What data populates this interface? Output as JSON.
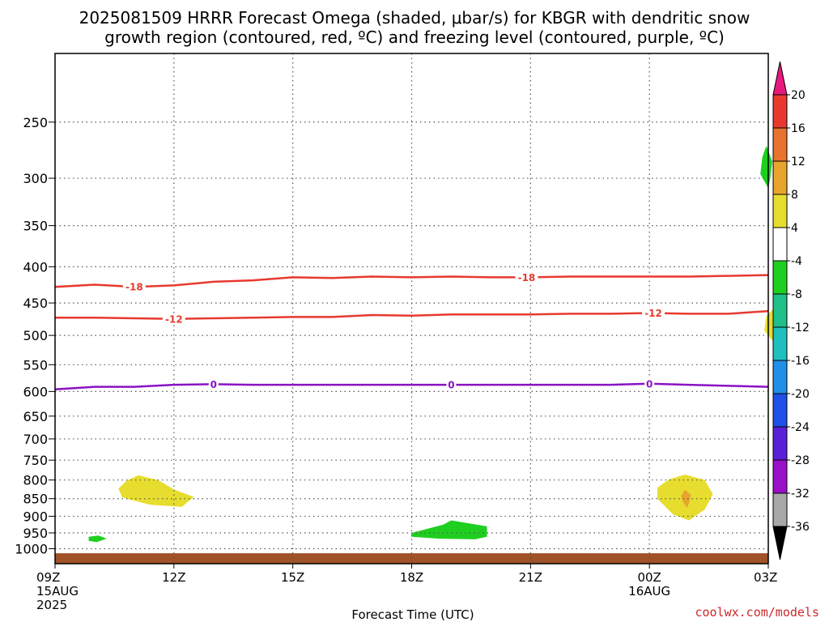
{
  "chart_data": {
    "type": "heatmap",
    "title_line1": "2025081509 HRRR Forecast Omega (shaded, μbar/s) for KBGR with dendritic snow",
    "title_line2": "growth region (contoured, red, ºC) and freezing level (contoured, purple, ºC)",
    "xlabel": "Forecast Time (UTC)",
    "ylabel": "",
    "y_scale": "log-pressure",
    "ylim": [
      1050,
      200
    ],
    "y_ticks": [
      250,
      300,
      350,
      400,
      450,
      500,
      550,
      600,
      650,
      700,
      750,
      800,
      850,
      900,
      950,
      1000
    ],
    "xlim": [
      0,
      18
    ],
    "x_ticks": [
      {
        "hours": 0,
        "line1": "09Z",
        "line2": "15AUG",
        "line3": "2025"
      },
      {
        "hours": 3,
        "line1": "12Z",
        "line2": "",
        "line3": ""
      },
      {
        "hours": 6,
        "line1": "15Z",
        "line2": "",
        "line3": ""
      },
      {
        "hours": 9,
        "line1": "18Z",
        "line2": "",
        "line3": ""
      },
      {
        "hours": 12,
        "line1": "21Z",
        "line2": "",
        "line3": ""
      },
      {
        "hours": 15,
        "line1": "00Z",
        "line2": "16AUG",
        "line3": ""
      },
      {
        "hours": 18,
        "line1": "03Z",
        "line2": "",
        "line3": ""
      }
    ],
    "grid": true,
    "contours": [
      {
        "label": "-18",
        "color": "#e8392f",
        "points": [
          [
            0,
            427
          ],
          [
            1,
            424
          ],
          [
            2,
            427
          ],
          [
            3,
            425
          ],
          [
            4,
            420
          ],
          [
            5,
            418
          ],
          [
            6,
            414
          ],
          [
            7,
            415
          ],
          [
            8,
            413
          ],
          [
            9,
            414
          ],
          [
            10,
            413
          ],
          [
            11,
            414
          ],
          [
            12,
            414
          ],
          [
            13,
            413
          ],
          [
            14,
            413
          ],
          [
            15,
            413
          ],
          [
            16,
            413
          ],
          [
            17,
            412
          ],
          [
            18,
            411
          ]
        ],
        "label_at": [
          2,
          11.9
        ]
      },
      {
        "label": "-12",
        "color": "#e8392f",
        "points": [
          [
            0,
            472
          ],
          [
            1,
            472
          ],
          [
            2,
            473
          ],
          [
            3,
            474
          ],
          [
            4,
            473
          ],
          [
            5,
            472
          ],
          [
            6,
            471
          ],
          [
            7,
            471
          ],
          [
            8,
            468
          ],
          [
            9,
            469
          ],
          [
            10,
            467
          ],
          [
            11,
            467
          ],
          [
            12,
            467
          ],
          [
            13,
            466
          ],
          [
            14,
            466
          ],
          [
            15,
            465
          ],
          [
            16,
            466
          ],
          [
            17,
            466
          ],
          [
            18,
            462
          ]
        ],
        "label_at": [
          3,
          15.1
        ]
      },
      {
        "label": "0",
        "color": "#8a12c4",
        "points": [
          [
            0,
            596
          ],
          [
            1,
            591
          ],
          [
            2,
            591
          ],
          [
            3,
            587
          ],
          [
            4,
            586
          ],
          [
            5,
            587
          ],
          [
            6,
            587
          ],
          [
            7,
            587
          ],
          [
            8,
            587
          ],
          [
            9,
            587
          ],
          [
            10,
            587
          ],
          [
            11,
            587
          ],
          [
            12,
            587
          ],
          [
            13,
            587
          ],
          [
            14,
            587
          ],
          [
            15,
            585
          ],
          [
            16,
            587
          ],
          [
            17,
            589
          ],
          [
            18,
            591
          ]
        ],
        "label_at": [
          4,
          10,
          15
        ]
      }
    ],
    "shaded_regions": [
      {
        "level": "4 to 8",
        "color": "#e6dd2e",
        "points": [
          [
            1.6,
            823
          ],
          [
            1.8,
            802
          ],
          [
            2.1,
            788
          ],
          [
            2.6,
            800
          ],
          [
            3.0,
            825
          ],
          [
            3.5,
            845
          ],
          [
            3.2,
            873
          ],
          [
            2.4,
            867
          ],
          [
            1.7,
            847
          ]
        ]
      },
      {
        "level": "4 to 8",
        "color": "#e6dd2e",
        "points": [
          [
            15.2,
            820
          ],
          [
            15.5,
            798
          ],
          [
            15.9,
            786
          ],
          [
            16.4,
            800
          ],
          [
            16.6,
            838
          ],
          [
            16.4,
            880
          ],
          [
            16.0,
            912
          ],
          [
            15.6,
            895
          ],
          [
            15.2,
            850
          ]
        ]
      },
      {
        "level": "8 to 12",
        "color": "#e8a52e",
        "points": [
          [
            15.9,
            826
          ],
          [
            16.05,
            840
          ],
          [
            16.0,
            862
          ],
          [
            15.95,
            876
          ],
          [
            15.85,
            860
          ],
          [
            15.8,
            842
          ]
        ]
      },
      {
        "level": "4 to 8",
        "color": "#e6dd2e",
        "points": [
          [
            18.1,
            460
          ],
          [
            18.35,
            478
          ],
          [
            18.45,
            490
          ],
          [
            18.15,
            512
          ],
          [
            17.9,
            492
          ],
          [
            17.95,
            470
          ]
        ]
      },
      {
        "level": "-8 to -4",
        "color": "#1fcf1f",
        "points": [
          [
            17.95,
            270
          ],
          [
            18.1,
            284
          ],
          [
            18.05,
            300
          ],
          [
            18.0,
            310
          ],
          [
            17.8,
            296
          ],
          [
            17.85,
            280
          ]
        ]
      },
      {
        "level": "-8 to -4",
        "color": "#1fcf1f",
        "points": [
          [
            0.85,
            962
          ],
          [
            1.1,
            958
          ],
          [
            1.3,
            968
          ],
          [
            1.05,
            979
          ],
          [
            0.85,
            975
          ]
        ]
      },
      {
        "level": "-8 to -4",
        "color": "#1fcf1f",
        "points": [
          [
            9.0,
            950
          ],
          [
            9.8,
            925
          ],
          [
            10.0,
            912
          ],
          [
            10.3,
            918
          ],
          [
            10.9,
            930
          ],
          [
            10.9,
            962
          ],
          [
            10.6,
            970
          ],
          [
            9.7,
            968
          ],
          [
            9.0,
            962
          ]
        ]
      }
    ],
    "ground": {
      "from_pressure": 1015,
      "to_pressure": 1050,
      "color": "#a05228"
    },
    "colorbar": {
      "labels": [
        "20",
        "16",
        "12",
        "8",
        "4",
        "-4",
        "-8",
        "-12",
        "-16",
        "-20",
        "-24",
        "-28",
        "-32",
        "-36"
      ],
      "colors": [
        "#e8197e",
        "#e8392f",
        "#e8732e",
        "#e8a52e",
        "#e6dd2e",
        "#ffffff",
        "#1fcf1f",
        "#1fbf8a",
        "#1fbfbf",
        "#1f8fe8",
        "#1f4fe8",
        "#5a1fd8",
        "#9a0fc8",
        "#a8a8a8",
        "#000000"
      ]
    },
    "credit": "coolwx.com/models"
  }
}
